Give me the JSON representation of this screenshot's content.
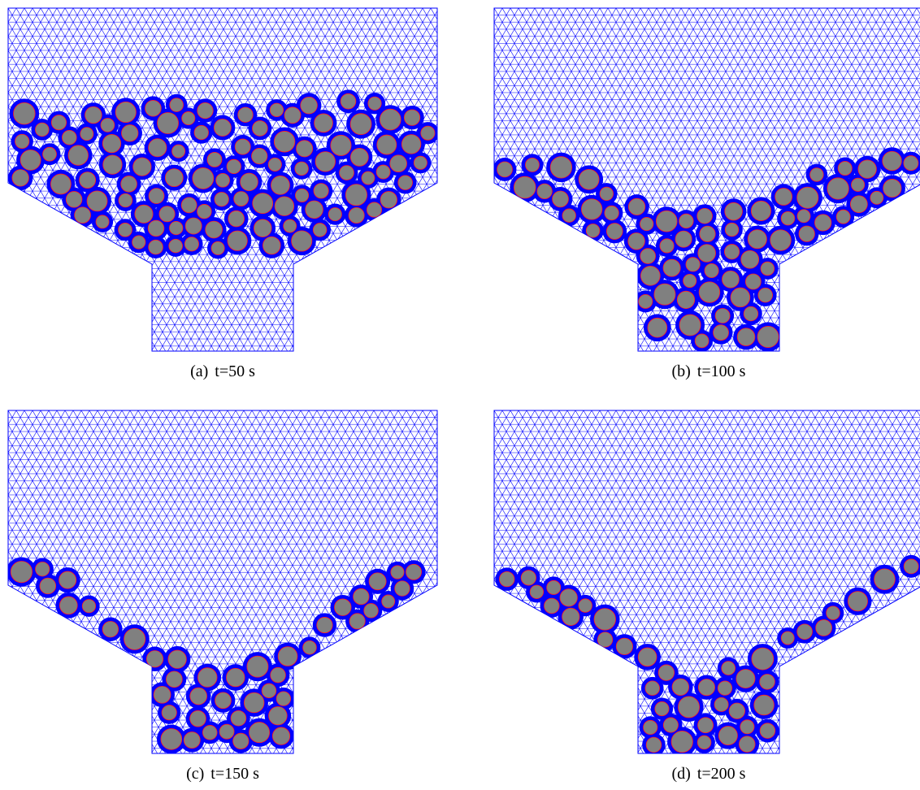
{
  "panels": [
    {
      "label": "(a)",
      "caption": "t=50 s"
    },
    {
      "label": "(b)",
      "caption": "t=100 s"
    },
    {
      "label": "(c)",
      "caption": "t=150 s"
    },
    {
      "label": "(d)",
      "caption": "t=200 s"
    }
  ]
}
